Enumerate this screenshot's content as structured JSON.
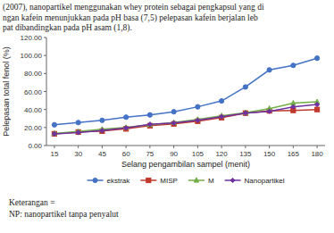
{
  "chart_data": {
    "type": "line",
    "x": [
      15,
      30,
      45,
      60,
      75,
      90,
      105,
      120,
      135,
      150,
      165,
      180
    ],
    "series": [
      {
        "name": "ekstrak",
        "color": "#4472C4",
        "marker": "circle",
        "values": [
          23.0,
          25.5,
          28.0,
          31.5,
          34.0,
          37.5,
          43.0,
          49.5,
          65.0,
          84.0,
          89.0,
          97.0
        ]
      },
      {
        "name": "MISP",
        "color": "#c0392b",
        "marker": "square",
        "values": [
          13.0,
          15.0,
          16.0,
          18.5,
          22.0,
          24.0,
          27.0,
          31.0,
          36.0,
          38.5,
          39.0,
          40.0
        ]
      },
      {
        "name": "M",
        "color": "#70AD47",
        "marker": "triangle",
        "values": [
          13.5,
          15.5,
          18.0,
          20.0,
          23.0,
          25.5,
          29.0,
          33.0,
          36.5,
          41.0,
          47.0,
          48.5
        ]
      },
      {
        "name": "Nanopartikel",
        "color": "#7030A0",
        "marker": "diamond",
        "values": [
          13.0,
          14.5,
          16.5,
          19.5,
          23.5,
          25.0,
          28.0,
          32.0,
          36.0,
          38.0,
          43.0,
          45.5
        ]
      }
    ],
    "xlabel": "Selang pengambilan sampel (menit)",
    "ylabel": "Pelepasan total fenol (%)",
    "xlim": [
      10,
      185
    ],
    "xticks": [
      15,
      30,
      45,
      60,
      75,
      90,
      105,
      120,
      135,
      150,
      165,
      180
    ],
    "ylim": [
      0,
      120
    ],
    "yticks": [
      {
        "value": 0,
        "label": "0.00"
      },
      {
        "value": 20,
        "label": "20.00"
      },
      {
        "value": 40,
        "label": "40.00"
      },
      {
        "value": 60,
        "label": "60.00"
      },
      {
        "value": 80,
        "label": "80.00"
      },
      {
        "value": 100,
        "label": "100.00"
      },
      {
        "value": 120,
        "label": "120.00"
      }
    ],
    "grid": false,
    "legend": "bottom",
    "annotations": [
      "(2007), nanopartikel menggunakan whey protein sebagai pengkapsul yang di",
      "ngan kafein menunjukkan pada pH basa (7,5) pelepasan kafein berjalan leb",
      "pat dibandingkan pada pH asam (1,8).",
      "Keterangan =",
      "NP: nanopartikel tanpa penyalut"
    ]
  }
}
